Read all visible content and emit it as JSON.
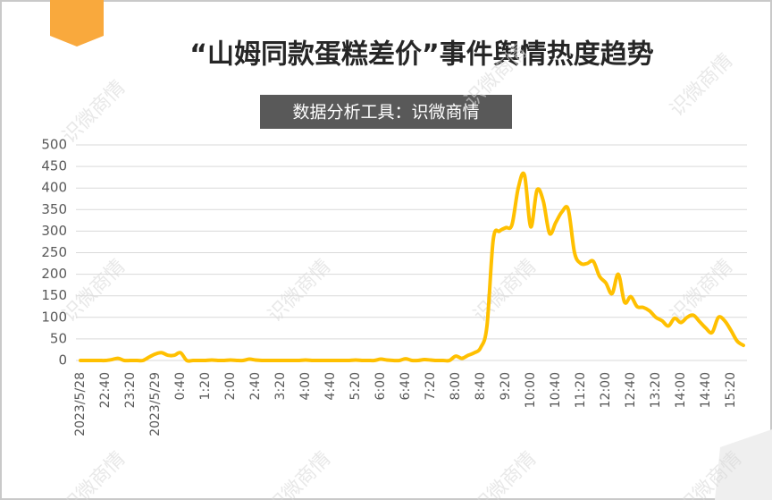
{
  "chart_data": {
    "type": "line",
    "title": "“山姆同款蛋糕差价”事件舆情热度趋势",
    "subtitle": "数据分析工具：识微商情",
    "watermark": "识微商情",
    "color": "#ffc000",
    "categories": [
      "2023/5/28",
      null,
      null,
      null,
      "22:40",
      null,
      null,
      null,
      "23:20",
      null,
      null,
      null,
      "2023/5/29",
      null,
      null,
      null,
      "0:40",
      null,
      null,
      null,
      "1:20",
      null,
      null,
      null,
      "2:00",
      null,
      null,
      null,
      "2:40",
      null,
      null,
      null,
      "3:20",
      null,
      null,
      null,
      "4:00",
      null,
      null,
      null,
      "4:40",
      null,
      null,
      null,
      "5:20",
      null,
      null,
      null,
      "6:00",
      null,
      null,
      null,
      "6:40",
      null,
      null,
      null,
      "7:20",
      null,
      null,
      null,
      "8:00",
      null,
      null,
      null,
      "8:40",
      null,
      null,
      null,
      "9:20",
      null,
      null,
      null,
      "10:00",
      null,
      null,
      null,
      "10:40",
      null,
      null,
      null,
      "11:20",
      null,
      null,
      null,
      "12:00",
      null,
      null,
      null,
      "12:40",
      null,
      null,
      null,
      "13:20",
      null,
      null,
      null,
      "14:00",
      null,
      null,
      null,
      "14:40",
      null,
      null,
      null,
      "15:20",
      null,
      null
    ],
    "values": [
      0,
      0,
      0,
      0,
      0,
      2,
      5,
      0,
      0,
      0,
      0,
      8,
      15,
      18,
      12,
      12,
      18,
      0,
      0,
      0,
      0,
      1,
      0,
      0,
      1,
      0,
      0,
      3,
      1,
      0,
      0,
      0,
      0,
      0,
      0,
      0,
      1,
      0,
      0,
      0,
      0,
      0,
      0,
      0,
      1,
      0,
      0,
      0,
      3,
      1,
      0,
      0,
      4,
      0,
      0,
      2,
      1,
      0,
      0,
      0,
      10,
      5,
      12,
      18,
      30,
      80,
      280,
      300,
      308,
      315,
      400,
      430,
      310,
      395,
      370,
      295,
      320,
      345,
      350,
      250,
      225,
      225,
      230,
      195,
      180,
      155,
      200,
      135,
      148,
      125,
      123,
      115,
      100,
      92,
      80,
      98,
      88,
      100,
      105,
      90,
      75,
      65,
      100,
      92,
      70,
      45,
      35
    ],
    "ylim": [
      0,
      500
    ],
    "yticks": [
      0,
      50,
      100,
      150,
      200,
      250,
      300,
      350,
      400,
      450,
      500
    ],
    "grid": true
  }
}
